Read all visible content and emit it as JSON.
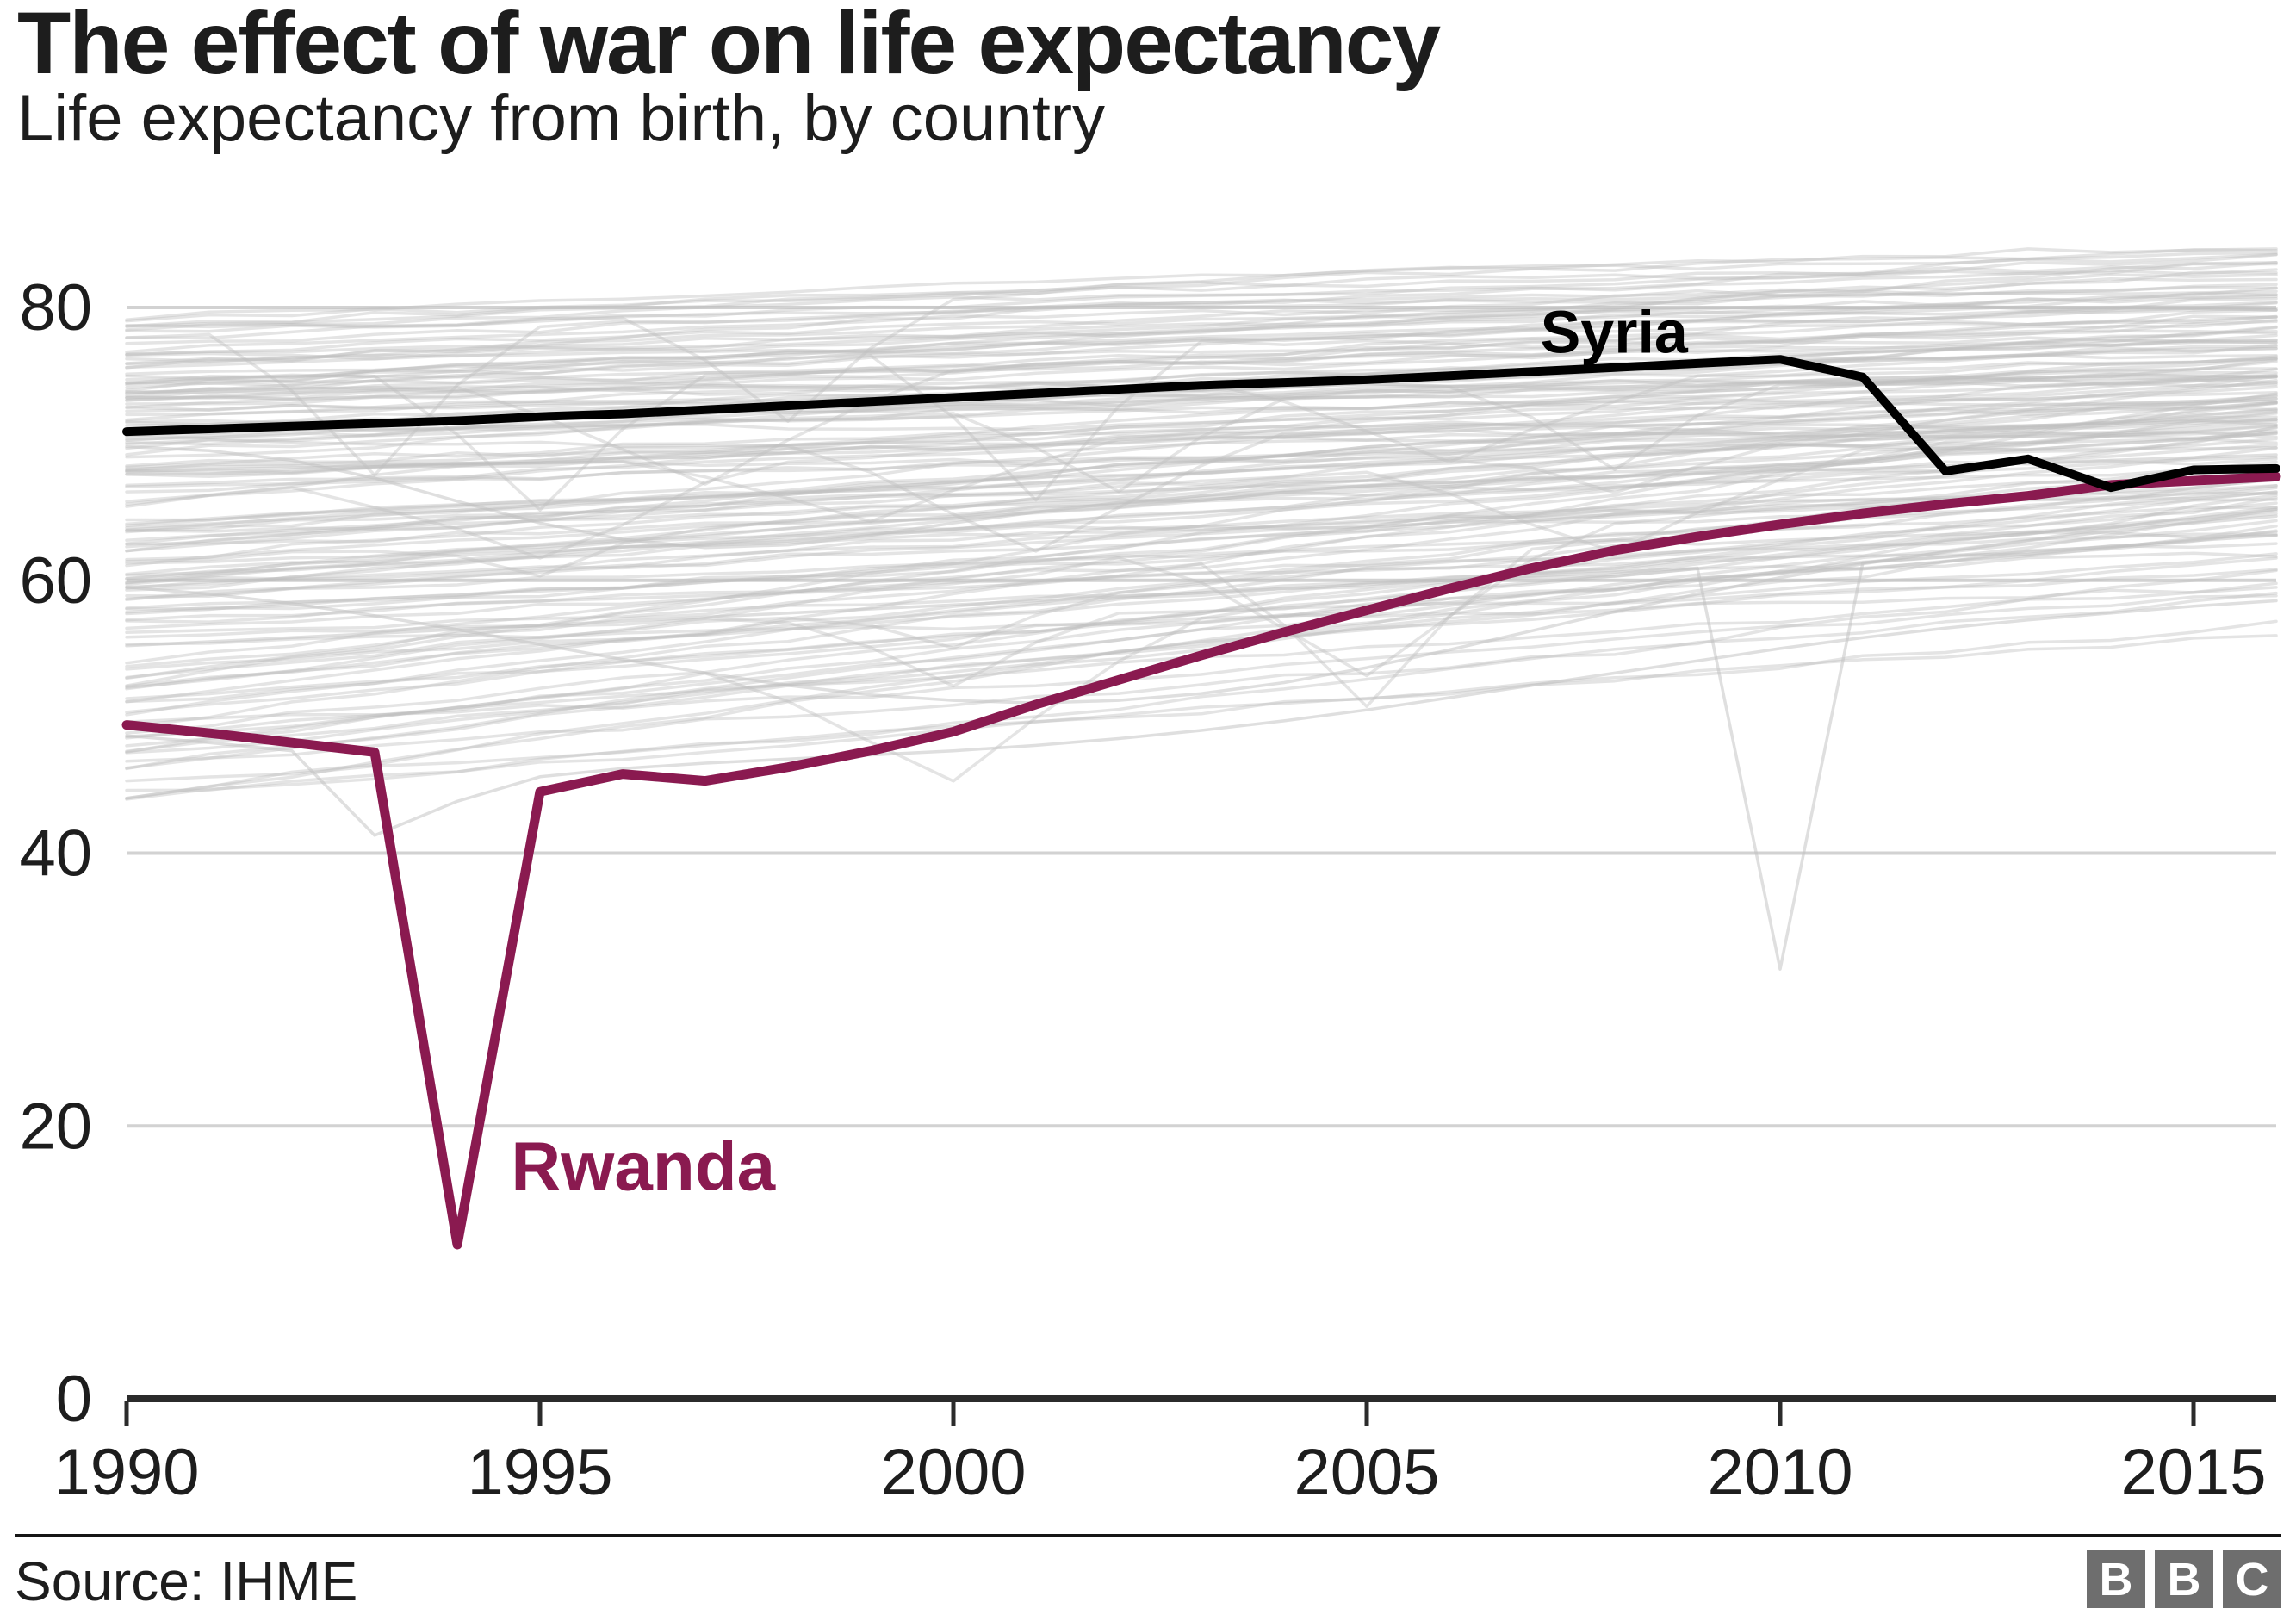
{
  "header": {
    "title": "The effect of war on life expectancy",
    "subtitle": "Life expectancy from birth, by country"
  },
  "footer": {
    "source": "Source: IHME",
    "logo_letters": [
      "B",
      "B",
      "C"
    ]
  },
  "colors": {
    "highlight_syria": "#000000",
    "highlight_rwanda": "#8a1a50",
    "background_line": "#bfbfbf",
    "gridline": "#d2d2d2",
    "axis": "#2b2b2b",
    "text": "#1d1d1d",
    "logo_square": "#6e6e6e",
    "logo_letter": "#ffffff"
  },
  "chart_data": {
    "type": "line",
    "title": "The effect of war on life expectancy",
    "subtitle": "Life expectancy from birth, by country",
    "xlabel": "",
    "ylabel": "",
    "xlim": [
      1990,
      2016
    ],
    "ylim": [
      0,
      85
    ],
    "grid": "horizontal",
    "legend": "inline-labels",
    "x_ticks": [
      1990,
      1995,
      2000,
      2005,
      2010,
      2015
    ],
    "y_ticks": [
      0,
      20,
      40,
      60,
      80
    ],
    "years": [
      1990,
      1991,
      1992,
      1993,
      1994,
      1995,
      1996,
      1997,
      1998,
      1999,
      2000,
      2001,
      2002,
      2003,
      2004,
      2005,
      2006,
      2007,
      2008,
      2009,
      2010,
      2011,
      2012,
      2013,
      2014,
      2015,
      2016
    ],
    "series": [
      {
        "name": "Syria",
        "color": "#000000",
        "stroke_width": 10,
        "values": [
          70.9,
          71.1,
          71.3,
          71.5,
          71.7,
          72.0,
          72.2,
          72.5,
          72.8,
          73.1,
          73.4,
          73.7,
          74.0,
          74.3,
          74.5,
          74.7,
          75.0,
          75.3,
          75.6,
          75.9,
          76.2,
          74.9,
          68.0,
          68.9,
          66.8,
          68.1,
          68.2
        ]
      },
      {
        "name": "Rwanda",
        "color": "#8a1a50",
        "stroke_width": 11,
        "values": [
          49.4,
          48.8,
          48.1,
          47.4,
          11.3,
          44.5,
          45.8,
          45.3,
          46.3,
          47.5,
          48.9,
          50.9,
          52.7,
          54.5,
          56.2,
          57.8,
          59.4,
          60.9,
          62.2,
          63.2,
          64.1,
          64.9,
          65.6,
          66.2,
          67.0,
          67.3,
          67.6
        ]
      }
    ],
    "annotations": [
      {
        "text": "Syria",
        "year": 2007.1,
        "value": 76.7,
        "color": "#000000",
        "font_size": 70
      },
      {
        "text": "Rwanda",
        "year": 1994.65,
        "value": 15.3,
        "color": "#8a1a50",
        "font_size": 80
      }
    ],
    "background_lines": {
      "description": "unlabelled grey life-expectancy lines for all other countries",
      "color": "#bfbfbf",
      "opacity": 0.42,
      "stroke_width": 3.5,
      "seed": 20,
      "count": 146,
      "min": 41,
      "max": 84.3,
      "dip_chance": 0.13,
      "clusters": [
        {
          "p": 0.44,
          "start_min": 66.0,
          "start_span": 13.5,
          "rise_min": 2.5,
          "rise_span": 5
        },
        {
          "p": 0.34,
          "start_min": 55.0,
          "start_span": 11.0,
          "rise_min": 4.0,
          "rise_span": 9
        },
        {
          "p": 0.22,
          "start_min": 43.5,
          "start_span": 11.0,
          "rise_min": 9.0,
          "rise_span": 13
        }
      ],
      "notable_series": [
        {
          "note": "deep 2010 dip",
          "values": [
            55.2,
            55.5,
            55.8,
            56.1,
            56.4,
            56.7,
            57.0,
            57.3,
            57.6,
            57.9,
            58.2,
            58.5,
            58.8,
            59.1,
            59.4,
            59.7,
            60.0,
            60.3,
            60.6,
            60.9,
            31.5,
            61.3,
            61.7,
            62.1,
            62.5,
            62.9,
            63.3
          ]
        },
        {
          "note": "1993 dip",
          "values": [
            48.6,
            48.1,
            47.5,
            41.3,
            43.8,
            45.6,
            46.2,
            46.6,
            46.9,
            47.2,
            47.5,
            47.9,
            48.4,
            49.0,
            49.7,
            50.5,
            51.4,
            52.3,
            53.2,
            54.1,
            55.0,
            55.8,
            56.5,
            57.1,
            57.6,
            58.1,
            58.5
          ]
        },
        {
          "note": "1990s decline then recovery",
          "values": [
            59.5,
            59.0,
            58.3,
            57.4,
            56.4,
            55.3,
            54.2,
            53.2,
            52.3,
            51.6,
            51.2,
            51.0,
            51.2,
            51.7,
            52.5,
            53.6,
            54.9,
            56.3,
            57.7,
            59.0,
            60.2,
            61.2,
            62.1,
            62.9,
            63.6,
            64.2,
            64.7
          ]
        },
        {
          "note": "mid-1990s dip",
          "values": [
            69.8,
            69.5,
            68.8,
            67.5,
            65.8,
            64.2,
            63.0,
            62.4,
            62.6,
            63.3,
            64.2,
            65.0,
            65.7,
            66.2,
            66.6,
            66.9,
            67.2,
            67.4,
            67.6,
            67.8,
            68.0,
            68.2,
            68.4,
            68.6,
            68.8,
            69.0,
            69.2
          ]
        }
      ]
    }
  }
}
